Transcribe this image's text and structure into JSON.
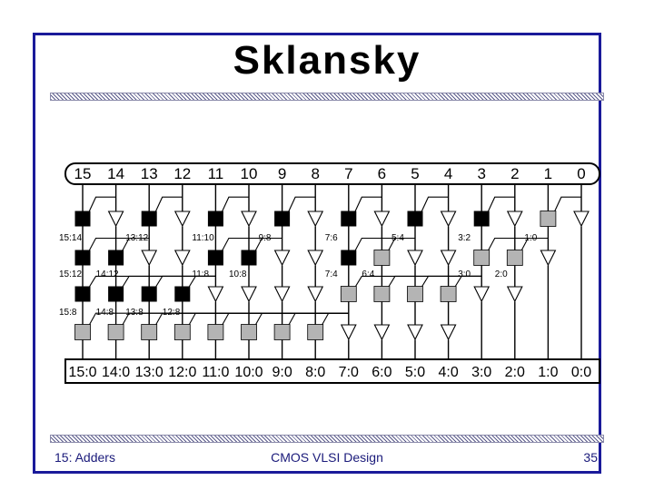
{
  "slide": {
    "title": "Sklansky",
    "footer_left": "15: Adders",
    "footer_center": "CMOS VLSI Design",
    "footer_right": "35"
  },
  "diagram": {
    "inputs": [
      "15",
      "14",
      "13",
      "12",
      "11",
      "10",
      "9",
      "8",
      "7",
      "6",
      "5",
      "4",
      "3",
      "2",
      "1",
      "0"
    ],
    "outputs": [
      "15:0",
      "14:0",
      "13:0",
      "12:0",
      "11:0",
      "10:0",
      "9:0",
      "8:0",
      "7:0",
      "6:0",
      "5:0",
      "4:0",
      "3:0",
      "2:0",
      "1:0",
      "0:0"
    ],
    "levels": [
      {
        "cells": [
          "black",
          "buffer",
          "black",
          "buffer",
          "black",
          "buffer",
          "black",
          "buffer",
          "black",
          "buffer",
          "black",
          "buffer",
          "black",
          "buffer",
          "gray",
          "buffer"
        ],
        "labels": {
          "0": "15:14",
          "2": "13:12",
          "4": "11:10",
          "6": "9:8",
          "8": "7:6",
          "10": "5:4",
          "12": "3:2",
          "14": "1:0"
        }
      },
      {
        "cells": [
          "black",
          "black",
          "buffer",
          "buffer",
          "black",
          "black",
          "buffer",
          "buffer",
          "black",
          "gray",
          "buffer",
          "buffer",
          "gray",
          "gray",
          "buffer",
          "none"
        ],
        "labels": {
          "0": "15:12",
          "1": "14:12",
          "4": "11:8",
          "5": "10:8",
          "8": "7:4",
          "9": "6:4",
          "12": "3:0",
          "13": "2:0"
        }
      },
      {
        "cells": [
          "black",
          "black",
          "black",
          "black",
          "buffer",
          "buffer",
          "buffer",
          "buffer",
          "gray",
          "gray",
          "gray",
          "gray",
          "buffer",
          "buffer",
          "none",
          "none"
        ],
        "labels": {
          "0": "15:8",
          "1": "14:8",
          "2": "13:8",
          "3": "12:8"
        }
      },
      {
        "cells": [
          "gray",
          "gray",
          "gray",
          "gray",
          "gray",
          "gray",
          "gray",
          "gray",
          "buffer",
          "buffer",
          "buffer",
          "buffer",
          "none",
          "none",
          "none",
          "none"
        ],
        "labels": {}
      }
    ],
    "colors": {
      "black_cell": "#000000",
      "gray_cell": "#b4b4b4",
      "buffer": "#ffffff",
      "wire": "#000000"
    }
  }
}
